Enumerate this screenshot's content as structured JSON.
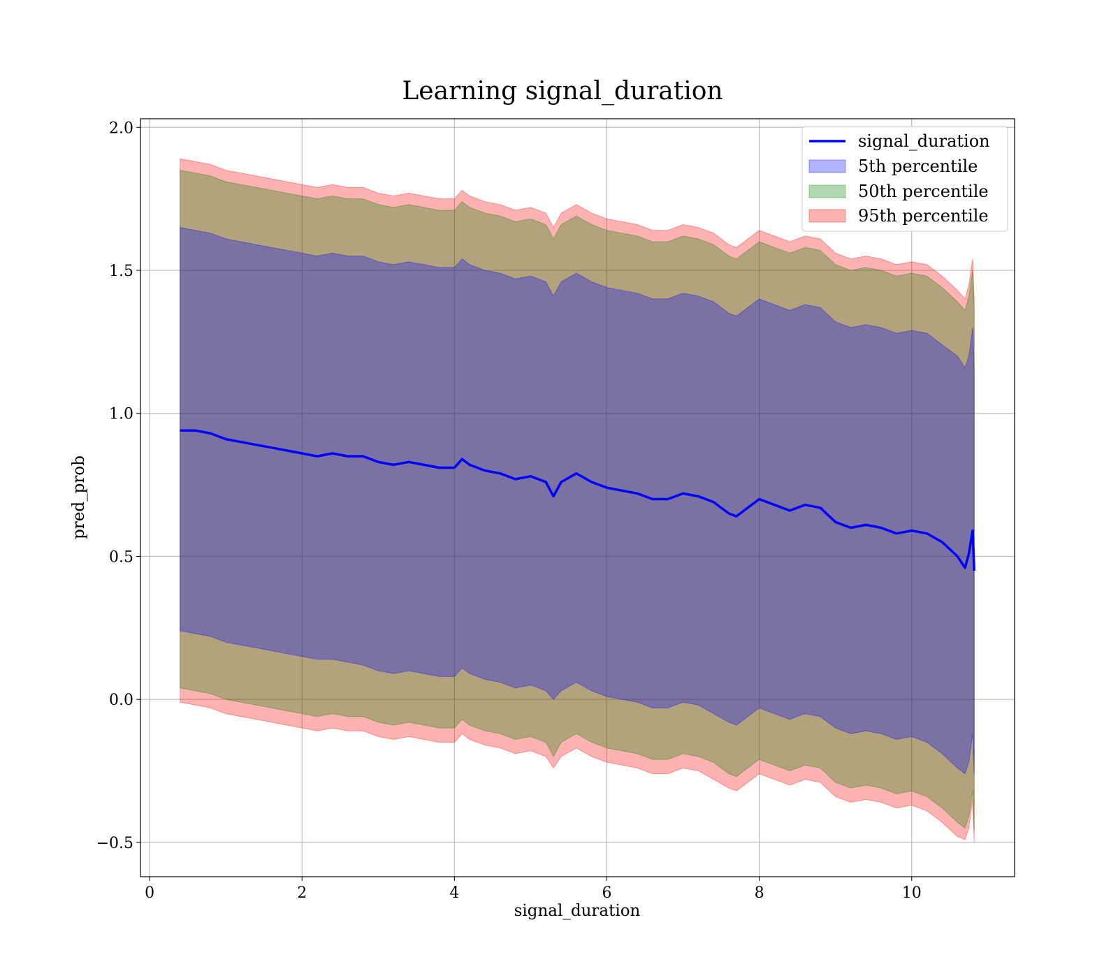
{
  "chart_data": {
    "type": "line",
    "title": "Learning signal_duration",
    "xlabel": "signal_duration",
    "ylabel": "pred_prob",
    "xlim": [
      -0.12,
      11.35
    ],
    "ylim": [
      -0.62,
      2.03
    ],
    "xticks": [
      0,
      2,
      4,
      6,
      8,
      10
    ],
    "xtick_labels": [
      "0",
      "2",
      "4",
      "6",
      "8",
      "10"
    ],
    "yticks": [
      -0.5,
      0.0,
      0.5,
      1.0,
      1.5,
      2.0
    ],
    "ytick_labels": [
      "−0.5",
      "0.0",
      "0.5",
      "1.0",
      "1.5",
      "2.0"
    ],
    "grid": true,
    "legend_position": "top-right",
    "x": [
      0.4,
      0.6,
      0.8,
      1.0,
      1.2,
      1.4,
      1.6,
      1.8,
      2.0,
      2.2,
      2.4,
      2.6,
      2.8,
      3.0,
      3.2,
      3.4,
      3.6,
      3.8,
      4.0,
      4.1,
      4.2,
      4.4,
      4.6,
      4.8,
      5.0,
      5.2,
      5.3,
      5.4,
      5.6,
      5.8,
      6.0,
      6.2,
      6.4,
      6.6,
      6.8,
      7.0,
      7.2,
      7.4,
      7.6,
      7.7,
      7.8,
      8.0,
      8.2,
      8.4,
      8.6,
      8.8,
      9.0,
      9.2,
      9.4,
      9.6,
      9.8,
      10.0,
      10.2,
      10.4,
      10.6,
      10.7,
      10.75,
      10.8,
      10.82
    ],
    "series": [
      {
        "name": "signal_duration",
        "color": "#0000ff",
        "values": [
          0.94,
          0.94,
          0.93,
          0.91,
          0.9,
          0.89,
          0.88,
          0.87,
          0.86,
          0.85,
          0.86,
          0.85,
          0.85,
          0.83,
          0.82,
          0.83,
          0.82,
          0.81,
          0.81,
          0.84,
          0.82,
          0.8,
          0.79,
          0.77,
          0.78,
          0.76,
          0.71,
          0.76,
          0.79,
          0.76,
          0.74,
          0.73,
          0.72,
          0.7,
          0.7,
          0.72,
          0.71,
          0.69,
          0.65,
          0.64,
          0.66,
          0.7,
          0.68,
          0.66,
          0.68,
          0.67,
          0.62,
          0.6,
          0.61,
          0.6,
          0.58,
          0.59,
          0.58,
          0.55,
          0.5,
          0.46,
          0.51,
          0.59,
          0.45
        ]
      }
    ],
    "bands": [
      {
        "name": "5th percentile",
        "color": "#0000ff",
        "lower": [
          0.24,
          0.23,
          0.22,
          0.2,
          0.19,
          0.18,
          0.17,
          0.16,
          0.15,
          0.14,
          0.14,
          0.13,
          0.12,
          0.1,
          0.09,
          0.1,
          0.09,
          0.08,
          0.08,
          0.11,
          0.09,
          0.07,
          0.06,
          0.04,
          0.05,
          0.03,
          0.0,
          0.03,
          0.06,
          0.03,
          0.01,
          0.0,
          -0.01,
          -0.03,
          -0.03,
          -0.01,
          -0.02,
          -0.05,
          -0.08,
          -0.09,
          -0.07,
          -0.03,
          -0.05,
          -0.07,
          -0.05,
          -0.06,
          -0.1,
          -0.12,
          -0.11,
          -0.12,
          -0.14,
          -0.13,
          -0.15,
          -0.19,
          -0.24,
          -0.26,
          -0.22,
          -0.12,
          -0.26
        ],
        "upper": [
          1.65,
          1.64,
          1.63,
          1.61,
          1.6,
          1.59,
          1.58,
          1.57,
          1.56,
          1.55,
          1.56,
          1.55,
          1.55,
          1.53,
          1.52,
          1.53,
          1.52,
          1.51,
          1.51,
          1.54,
          1.52,
          1.5,
          1.49,
          1.47,
          1.48,
          1.46,
          1.41,
          1.46,
          1.49,
          1.46,
          1.44,
          1.43,
          1.42,
          1.4,
          1.4,
          1.42,
          1.41,
          1.39,
          1.35,
          1.34,
          1.36,
          1.4,
          1.38,
          1.36,
          1.38,
          1.37,
          1.32,
          1.3,
          1.31,
          1.3,
          1.28,
          1.29,
          1.28,
          1.24,
          1.2,
          1.16,
          1.2,
          1.3,
          1.15
        ]
      },
      {
        "name": "50th percentile",
        "color": "#008000",
        "lower": [
          0.04,
          0.03,
          0.02,
          0.0,
          -0.01,
          -0.02,
          -0.03,
          -0.04,
          -0.05,
          -0.06,
          -0.05,
          -0.06,
          -0.06,
          -0.08,
          -0.09,
          -0.08,
          -0.09,
          -0.1,
          -0.1,
          -0.07,
          -0.09,
          -0.11,
          -0.12,
          -0.14,
          -0.13,
          -0.15,
          -0.2,
          -0.15,
          -0.12,
          -0.15,
          -0.17,
          -0.18,
          -0.19,
          -0.21,
          -0.21,
          -0.19,
          -0.2,
          -0.22,
          -0.26,
          -0.27,
          -0.25,
          -0.21,
          -0.23,
          -0.25,
          -0.23,
          -0.24,
          -0.29,
          -0.31,
          -0.3,
          -0.31,
          -0.33,
          -0.32,
          -0.34,
          -0.38,
          -0.43,
          -0.45,
          -0.41,
          -0.32,
          -0.46
        ],
        "upper": [
          1.85,
          1.84,
          1.83,
          1.81,
          1.8,
          1.79,
          1.78,
          1.77,
          1.76,
          1.75,
          1.76,
          1.75,
          1.75,
          1.73,
          1.72,
          1.73,
          1.72,
          1.71,
          1.71,
          1.74,
          1.72,
          1.7,
          1.69,
          1.67,
          1.68,
          1.66,
          1.61,
          1.66,
          1.69,
          1.66,
          1.64,
          1.63,
          1.62,
          1.6,
          1.6,
          1.62,
          1.61,
          1.59,
          1.55,
          1.54,
          1.56,
          1.6,
          1.58,
          1.56,
          1.58,
          1.57,
          1.52,
          1.5,
          1.51,
          1.5,
          1.48,
          1.49,
          1.48,
          1.44,
          1.39,
          1.36,
          1.41,
          1.5,
          1.36
        ]
      },
      {
        "name": "95th percentile",
        "color": "#ff0000",
        "lower": [
          -0.01,
          -0.02,
          -0.03,
          -0.05,
          -0.06,
          -0.07,
          -0.08,
          -0.09,
          -0.1,
          -0.11,
          -0.1,
          -0.11,
          -0.11,
          -0.13,
          -0.14,
          -0.13,
          -0.14,
          -0.15,
          -0.15,
          -0.12,
          -0.14,
          -0.16,
          -0.17,
          -0.19,
          -0.18,
          -0.2,
          -0.24,
          -0.2,
          -0.17,
          -0.2,
          -0.22,
          -0.23,
          -0.24,
          -0.26,
          -0.26,
          -0.24,
          -0.25,
          -0.28,
          -0.31,
          -0.32,
          -0.3,
          -0.26,
          -0.28,
          -0.3,
          -0.28,
          -0.29,
          -0.34,
          -0.36,
          -0.35,
          -0.36,
          -0.38,
          -0.37,
          -0.39,
          -0.43,
          -0.48,
          -0.49,
          -0.45,
          -0.35,
          -0.5
        ],
        "upper": [
          1.89,
          1.88,
          1.87,
          1.85,
          1.84,
          1.83,
          1.82,
          1.81,
          1.8,
          1.79,
          1.8,
          1.79,
          1.79,
          1.77,
          1.76,
          1.77,
          1.76,
          1.75,
          1.75,
          1.78,
          1.76,
          1.74,
          1.73,
          1.71,
          1.72,
          1.7,
          1.65,
          1.7,
          1.73,
          1.7,
          1.68,
          1.67,
          1.66,
          1.64,
          1.64,
          1.66,
          1.65,
          1.63,
          1.59,
          1.58,
          1.6,
          1.64,
          1.62,
          1.6,
          1.62,
          1.61,
          1.56,
          1.54,
          1.55,
          1.54,
          1.52,
          1.53,
          1.52,
          1.48,
          1.43,
          1.4,
          1.45,
          1.54,
          1.4
        ]
      }
    ]
  }
}
